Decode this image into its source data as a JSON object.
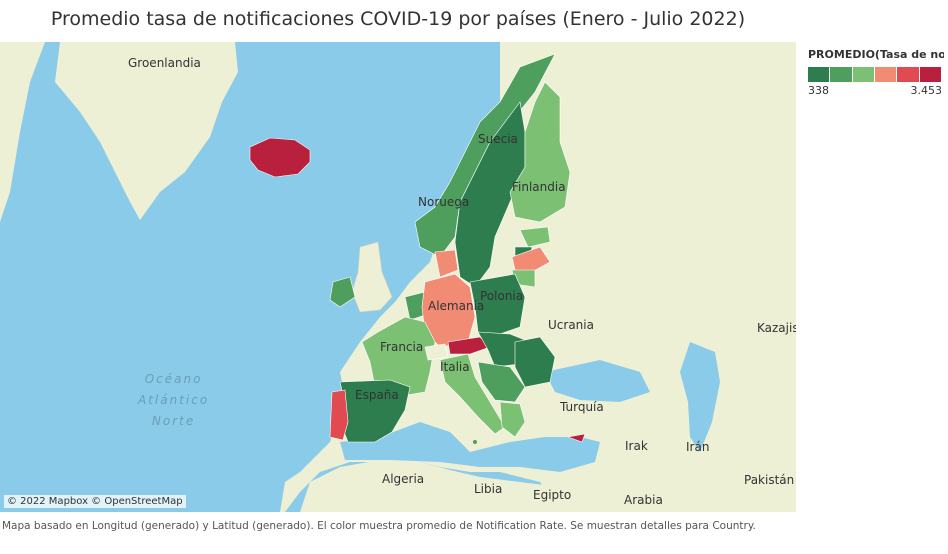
{
  "title": "Promedio tasa de notificaciones COVID-19 por países (Enero - Julio 2022)",
  "legend": {
    "title": "PROMEDIO(Tasa de not..",
    "min": "338",
    "max": "3.453",
    "colors": [
      "#2e7d4f",
      "#4e9e5e",
      "#7cc073",
      "#f28b74",
      "#e04a50",
      "#b8203e"
    ]
  },
  "colors": {
    "water": "#89cbe8",
    "land": "#eef0d6"
  },
  "labels": {
    "groenlandia": "Groenlandia",
    "suecia": "Suecia",
    "finlandia": "Finlandia",
    "noruega": "Noruega",
    "alemania": "Alemania",
    "polonia": "Polonia",
    "ucrania": "Ucrania",
    "kazajistan": "Kazajis",
    "francia": "Francia",
    "italia": "Italia",
    "espana": "España",
    "turquia": "Turquía",
    "irak": "Irak",
    "iran": "Irán",
    "argelia": "Algeria",
    "libia": "Libia",
    "egipto": "Egipto",
    "arabia": "Arabia",
    "pakistan": "Pakistán",
    "oceano": "Océano\nAtlántico\nNorte"
  },
  "attribution": "© 2022 Mapbox © OpenStreetMap",
  "caption": "Mapa basado en Longitud (generado) y Latitud (generado). El color muestra promedio de Notification Rate. Se muestran detalles para Country."
}
